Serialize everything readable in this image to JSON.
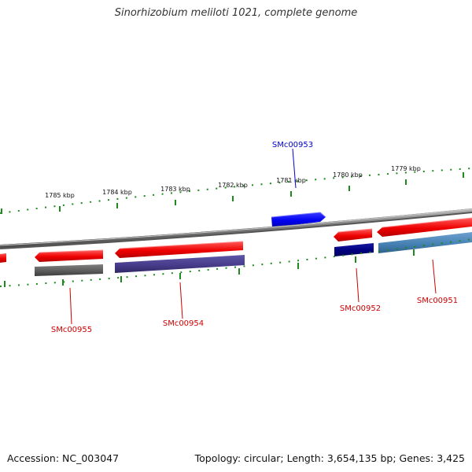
{
  "title": "Sinorhizobium meliloti 1021, complete genome",
  "footer": {
    "accession": "Accession: NC_003047",
    "topology": "Topology: circular; Length: 3,654,135 bp; Genes: 3,425"
  },
  "colors": {
    "backbone": "#7a7a7a",
    "tick": "#1e8a1e",
    "gene_forward": "#ff0000",
    "gene_reverse_cds": "#ff0000",
    "label_forward": "#0000cc",
    "label_reverse": "#cc0000"
  },
  "scale_labels": [
    "1785 kbp",
    "1784 kbp",
    "1783 kbp",
    "1782 kbp",
    "1781 kbp",
    "1780 kbp",
    "1779 kbp"
  ],
  "gene_labels": {
    "SMc00953": "SMc00953",
    "SMc00955": "SMc00955",
    "SMc00954": "SMc00954",
    "SMc00952": "SMc00952",
    "SMc00951": "SMc00951"
  },
  "features": [
    {
      "id": "edge-left",
      "strand": "reverse",
      "type": "gene",
      "color": "#ff0000"
    },
    {
      "id": "SMc00955",
      "strand": "reverse",
      "type": "gene",
      "color": "#ff0000"
    },
    {
      "id": "SMc00955-cds",
      "strand": "reverse",
      "type": "cds",
      "color": "#5c5c5c"
    },
    {
      "id": "SMc00954",
      "strand": "reverse",
      "type": "gene",
      "color": "#ff0000"
    },
    {
      "id": "SMc00954-cds",
      "strand": "reverse",
      "type": "cds",
      "color": "#483d8b"
    },
    {
      "id": "SMc00953",
      "strand": "forward",
      "type": "gene",
      "color": "#0000ff"
    },
    {
      "id": "SMc00952",
      "strand": "reverse",
      "type": "gene",
      "color": "#ff0000"
    },
    {
      "id": "SMc00952-cds",
      "strand": "reverse",
      "type": "cds",
      "color": "#000080"
    },
    {
      "id": "SMc00951",
      "strand": "reverse",
      "type": "gene",
      "color": "#ff0000"
    },
    {
      "id": "SMc00951-cds",
      "strand": "reverse",
      "type": "cds",
      "color": "#4682b4"
    }
  ]
}
